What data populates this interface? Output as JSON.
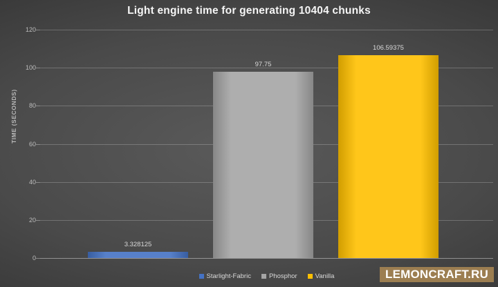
{
  "chart_data": {
    "type": "bar",
    "title": "Light engine time for generating 10404 chunks",
    "xlabel": "",
    "ylabel": "TIME (SECONDS)",
    "ylim": [
      0,
      120
    ],
    "yticks": [
      0,
      20,
      40,
      60,
      80,
      100,
      120
    ],
    "grid": true,
    "legend_position": "bottom",
    "categories": [
      "Starlight-Fabric",
      "Phosphor",
      "Vanilla"
    ],
    "values": [
      3.328125,
      97.75,
      106.59375
    ],
    "value_labels": [
      "3.328125",
      "97.75",
      "106.59375"
    ],
    "bar_colors": [
      "#4472c4",
      "#a5a5a5",
      "#ffc000"
    ]
  },
  "watermark": {
    "text": "LEMONCRAFT.RU",
    "bg_color": "#9c7e51",
    "text_color": "#ffffff"
  },
  "colors": {
    "background_center": "#5a5a5a",
    "background_edge": "#2c2c2c",
    "title_text": "#f5f5f5",
    "axis_text": "#bdbdbd",
    "value_label_text": "#d9d9d9",
    "gridline": "rgba(255,255,255,0.22)"
  }
}
